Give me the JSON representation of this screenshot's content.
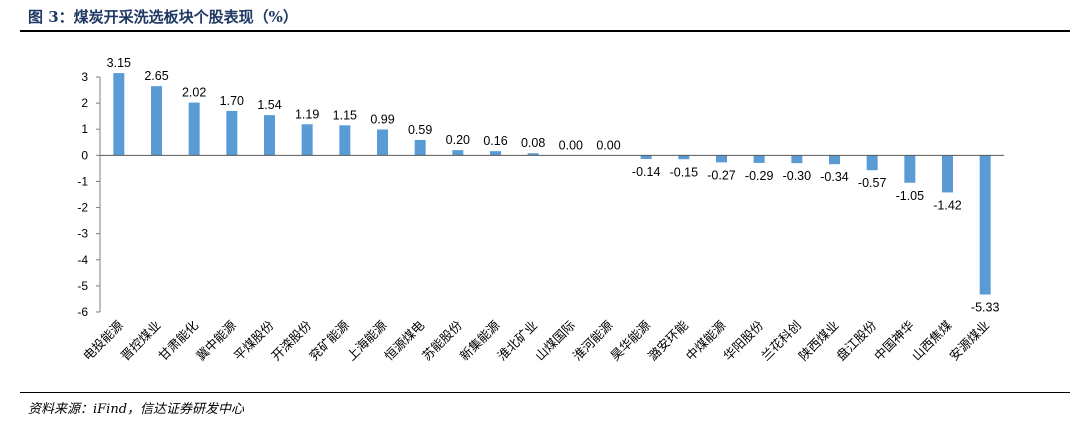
{
  "header": {
    "title": "图 3：煤炭开采洗选板块个股表现（%）"
  },
  "footer": {
    "source": "资料来源：iFind，信达证券研发中心"
  },
  "chart_data": {
    "type": "bar",
    "categories": [
      "电投能源",
      "晋控煤业",
      "甘肃能化",
      "冀中能源",
      "平煤股份",
      "开滦股份",
      "兖矿能源",
      "上海能源",
      "恒源煤电",
      "苏能股份",
      "新集能源",
      "淮北矿业",
      "山煤国际",
      "淮河能源",
      "昊华能源",
      "潞安环能",
      "中煤能源",
      "华阳股份",
      "兰花科创",
      "陕西煤业",
      "盘江股份",
      "中国神华",
      "山西焦煤",
      "安源煤业"
    ],
    "values": [
      3.15,
      2.65,
      2.02,
      1.7,
      1.54,
      1.19,
      1.15,
      0.99,
      0.59,
      0.2,
      0.16,
      0.08,
      0.0,
      0.0,
      -0.14,
      -0.15,
      -0.27,
      -0.29,
      -0.3,
      -0.34,
      -0.57,
      -1.05,
      -1.42,
      -5.33
    ],
    "value_labels": [
      "3.15",
      "2.65",
      "2.02",
      "1.70",
      "1.54",
      "1.19",
      "1.15",
      "0.99",
      "0.59",
      "0.20",
      "0.16",
      "0.08",
      "0.00",
      "0.00",
      "-0.14",
      "-0.15",
      "-0.27",
      "-0.29",
      "-0.30",
      "-0.34",
      "-0.57",
      "-1.05",
      "-1.42",
      "-5.33"
    ],
    "ylim": [
      -6,
      3
    ],
    "yticks": [
      3,
      2,
      1,
      0,
      -1,
      -2,
      -3,
      -4,
      -5,
      -6
    ],
    "bar_color": "#5b9bd5",
    "grid": false
  }
}
